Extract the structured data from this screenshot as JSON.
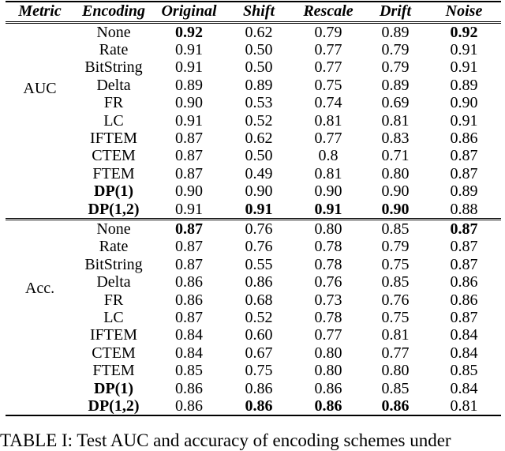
{
  "table": {
    "columns": [
      "Metric",
      "Encoding",
      "Original",
      "Shift",
      "Rescale",
      "Drift",
      "Noise"
    ],
    "sections": [
      {
        "metric": "AUC",
        "rows": [
          {
            "encoding": "None",
            "bold_encoding": false,
            "values": [
              "0.92",
              "0.62",
              "0.79",
              "0.89",
              "0.92"
            ],
            "bold_values": [
              0,
              4
            ]
          },
          {
            "encoding": "Rate",
            "bold_encoding": false,
            "values": [
              "0.91",
              "0.50",
              "0.77",
              "0.79",
              "0.91"
            ],
            "bold_values": []
          },
          {
            "encoding": "BitString",
            "bold_encoding": false,
            "values": [
              "0.91",
              "0.50",
              "0.77",
              "0.79",
              "0.91"
            ],
            "bold_values": []
          },
          {
            "encoding": "Delta",
            "bold_encoding": false,
            "values": [
              "0.89",
              "0.89",
              "0.75",
              "0.89",
              "0.89"
            ],
            "bold_values": []
          },
          {
            "encoding": "FR",
            "bold_encoding": false,
            "values": [
              "0.90",
              "0.53",
              "0.74",
              "0.69",
              "0.90"
            ],
            "bold_values": []
          },
          {
            "encoding": "LC",
            "bold_encoding": false,
            "values": [
              "0.91",
              "0.52",
              "0.81",
              "0.81",
              "0.91"
            ],
            "bold_values": []
          },
          {
            "encoding": "IFTEM",
            "bold_encoding": false,
            "values": [
              "0.87",
              "0.62",
              "0.77",
              "0.83",
              "0.86"
            ],
            "bold_values": []
          },
          {
            "encoding": "CTEM",
            "bold_encoding": false,
            "values": [
              "0.87",
              "0.50",
              "0.8",
              "0.71",
              "0.87"
            ],
            "bold_values": []
          },
          {
            "encoding": "FTEM",
            "bold_encoding": false,
            "values": [
              "0.87",
              "0.49",
              "0.81",
              "0.80",
              "0.87"
            ],
            "bold_values": []
          },
          {
            "encoding": "DP(1)",
            "bold_encoding": true,
            "values": [
              "0.90",
              "0.90",
              "0.90",
              "0.90",
              "0.89"
            ],
            "bold_values": []
          },
          {
            "encoding": "DP(1,2)",
            "bold_encoding": true,
            "values": [
              "0.91",
              "0.91",
              "0.91",
              "0.90",
              "0.88"
            ],
            "bold_values": [
              1,
              2,
              3
            ]
          }
        ]
      },
      {
        "metric": "Acc.",
        "rows": [
          {
            "encoding": "None",
            "bold_encoding": false,
            "values": [
              "0.87",
              "0.76",
              "0.80",
              "0.85",
              "0.87"
            ],
            "bold_values": [
              0,
              4
            ]
          },
          {
            "encoding": "Rate",
            "bold_encoding": false,
            "values": [
              "0.87",
              "0.76",
              "0.78",
              "0.79",
              "0.87"
            ],
            "bold_values": []
          },
          {
            "encoding": "BitString",
            "bold_encoding": false,
            "values": [
              "0.87",
              "0.55",
              "0.78",
              "0.75",
              "0.87"
            ],
            "bold_values": []
          },
          {
            "encoding": "Delta",
            "bold_encoding": false,
            "values": [
              "0.86",
              "0.86",
              "0.76",
              "0.85",
              "0.86"
            ],
            "bold_values": []
          },
          {
            "encoding": "FR",
            "bold_encoding": false,
            "values": [
              "0.86",
              "0.68",
              "0.73",
              "0.76",
              "0.86"
            ],
            "bold_values": []
          },
          {
            "encoding": "LC",
            "bold_encoding": false,
            "values": [
              "0.87",
              "0.52",
              "0.78",
              "0.75",
              "0.87"
            ],
            "bold_values": []
          },
          {
            "encoding": "IFTEM",
            "bold_encoding": false,
            "values": [
              "0.84",
              "0.60",
              "0.77",
              "0.81",
              "0.84"
            ],
            "bold_values": []
          },
          {
            "encoding": "CTEM",
            "bold_encoding": false,
            "values": [
              "0.84",
              "0.67",
              "0.80",
              "0.77",
              "0.84"
            ],
            "bold_values": []
          },
          {
            "encoding": "FTEM",
            "bold_encoding": false,
            "values": [
              "0.85",
              "0.75",
              "0.80",
              "0.80",
              "0.85"
            ],
            "bold_values": []
          },
          {
            "encoding": "DP(1)",
            "bold_encoding": true,
            "values": [
              "0.86",
              "0.86",
              "0.86",
              "0.85",
              "0.84"
            ],
            "bold_values": []
          },
          {
            "encoding": "DP(1,2)",
            "bold_encoding": true,
            "values": [
              "0.86",
              "0.86",
              "0.86",
              "0.86",
              "0.81"
            ],
            "bold_values": [
              1,
              2,
              3
            ]
          }
        ]
      }
    ]
  },
  "caption": "TABLE I: Test AUC and accuracy of encoding schemes under",
  "colors": {
    "text": "#000000",
    "background": "#ffffff",
    "rule": "#000000"
  }
}
